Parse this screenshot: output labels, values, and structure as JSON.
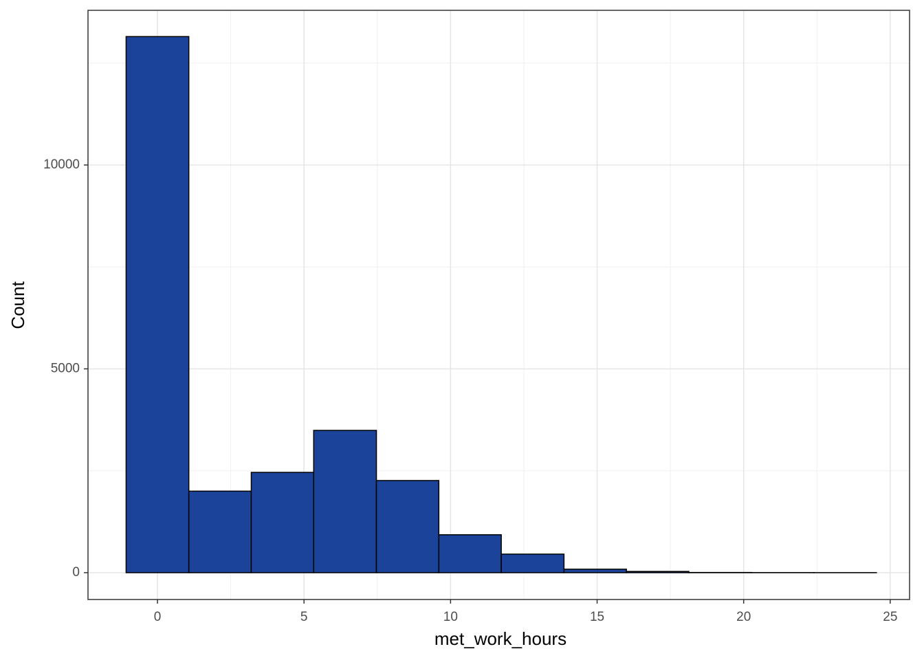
{
  "chart_data": {
    "type": "histogram",
    "xlabel": "met_work_hours",
    "ylabel": "Count",
    "bins": [
      -1.07,
      1.07,
      3.2,
      5.33,
      7.47,
      9.6,
      11.73,
      13.87,
      16.0,
      18.13,
      20.27,
      22.4,
      24.53
    ],
    "values": [
      13150,
      2000,
      2460,
      3490,
      2260,
      930,
      455,
      85,
      30,
      5,
      2,
      1
    ],
    "color": "#1a4399",
    "edgecolor": "#000000",
    "xlim": [
      -2.37,
      25.66
    ],
    "ylim": [
      -658,
      13794
    ],
    "xticks": [
      0,
      5,
      10,
      15,
      20,
      25
    ],
    "yticks": [
      0,
      5000,
      10000
    ],
    "x_minor_grid": [
      2.5,
      7.5,
      12.5,
      17.5,
      22.5
    ],
    "y_minor_grid": [
      2500,
      7500,
      12500
    ],
    "grid": true
  }
}
